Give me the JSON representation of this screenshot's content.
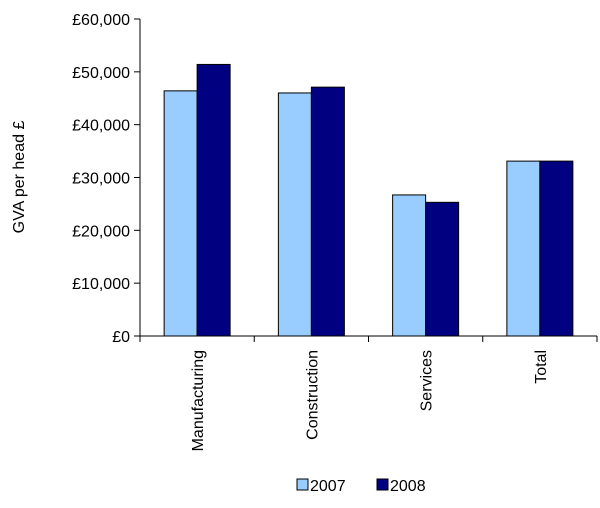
{
  "chart_data": {
    "type": "bar",
    "title": "",
    "xlabel": "",
    "ylabel": "GVA per head £",
    "categories": [
      "Manufacturing",
      "Construction",
      "Services",
      "Total"
    ],
    "series": [
      {
        "name": "2007",
        "values": [
          46400,
          46000,
          26700,
          33100
        ],
        "color": "#99ccff"
      },
      {
        "name": "2008",
        "values": [
          51400,
          47100,
          25300,
          33100
        ],
        "color": "#000080"
      }
    ],
    "ylim": [
      0,
      60000
    ],
    "yticks": [
      0,
      10000,
      20000,
      30000,
      40000,
      50000,
      60000
    ],
    "ytick_labels": [
      "£0",
      "£10,000",
      "£20,000",
      "£30,000",
      "£40,000",
      "£50,000",
      "£60,000"
    ],
    "grid": false,
    "legend_position": "bottom"
  }
}
